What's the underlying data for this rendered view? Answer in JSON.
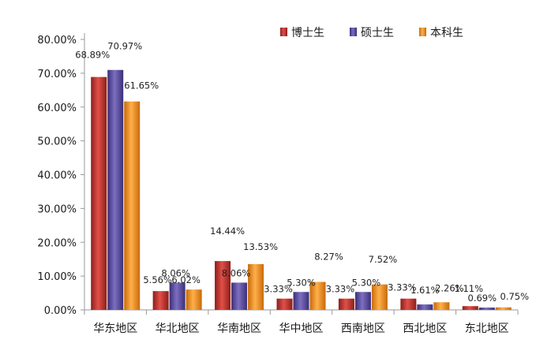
{
  "chart_data": {
    "type": "bar",
    "title": "",
    "xlabel": "",
    "ylabel": "",
    "categories": [
      "华东地区",
      "华北地区",
      "华南地区",
      "华中地区",
      "西南地区",
      "西北地区",
      "东北地区"
    ],
    "series": [
      {
        "name": "博士生",
        "color": "#c0312c",
        "values": [
          68.89,
          5.56,
          14.44,
          3.33,
          3.33,
          3.33,
          1.11
        ],
        "labels": [
          "68.89%",
          "5.56%",
          "14.44%",
          "3.33%",
          "3.33%",
          "3.33%",
          "1.11%"
        ]
      },
      {
        "name": "硕士生",
        "color": "#5a4b9c",
        "values": [
          70.97,
          8.06,
          8.06,
          5.3,
          5.3,
          1.61,
          0.69
        ],
        "labels": [
          "70.97%",
          "8.06%",
          "8.06%",
          "5.30%",
          "5.30%",
          "1.61%",
          "0.69%"
        ]
      },
      {
        "name": "本科生",
        "color": "#f08c1e",
        "values": [
          61.65,
          6.02,
          13.53,
          8.27,
          7.52,
          2.26,
          0.75
        ],
        "labels": [
          "61.65%",
          "6.02%",
          "13.53%",
          "8.27%",
          "7.52%",
          "2.26%",
          "0.75%"
        ]
      }
    ],
    "y_tick_values": [
      0,
      10,
      20,
      30,
      40,
      50,
      60,
      70,
      80
    ],
    "y_tick_labels": [
      "0.00%",
      "10.00%",
      "20.00%",
      "30.00%",
      "40.00%",
      "50.00%",
      "60.00%",
      "70.00%",
      "80.00%"
    ],
    "ylim": [
      0,
      80
    ],
    "grid": false,
    "legend_position": "top-right"
  }
}
